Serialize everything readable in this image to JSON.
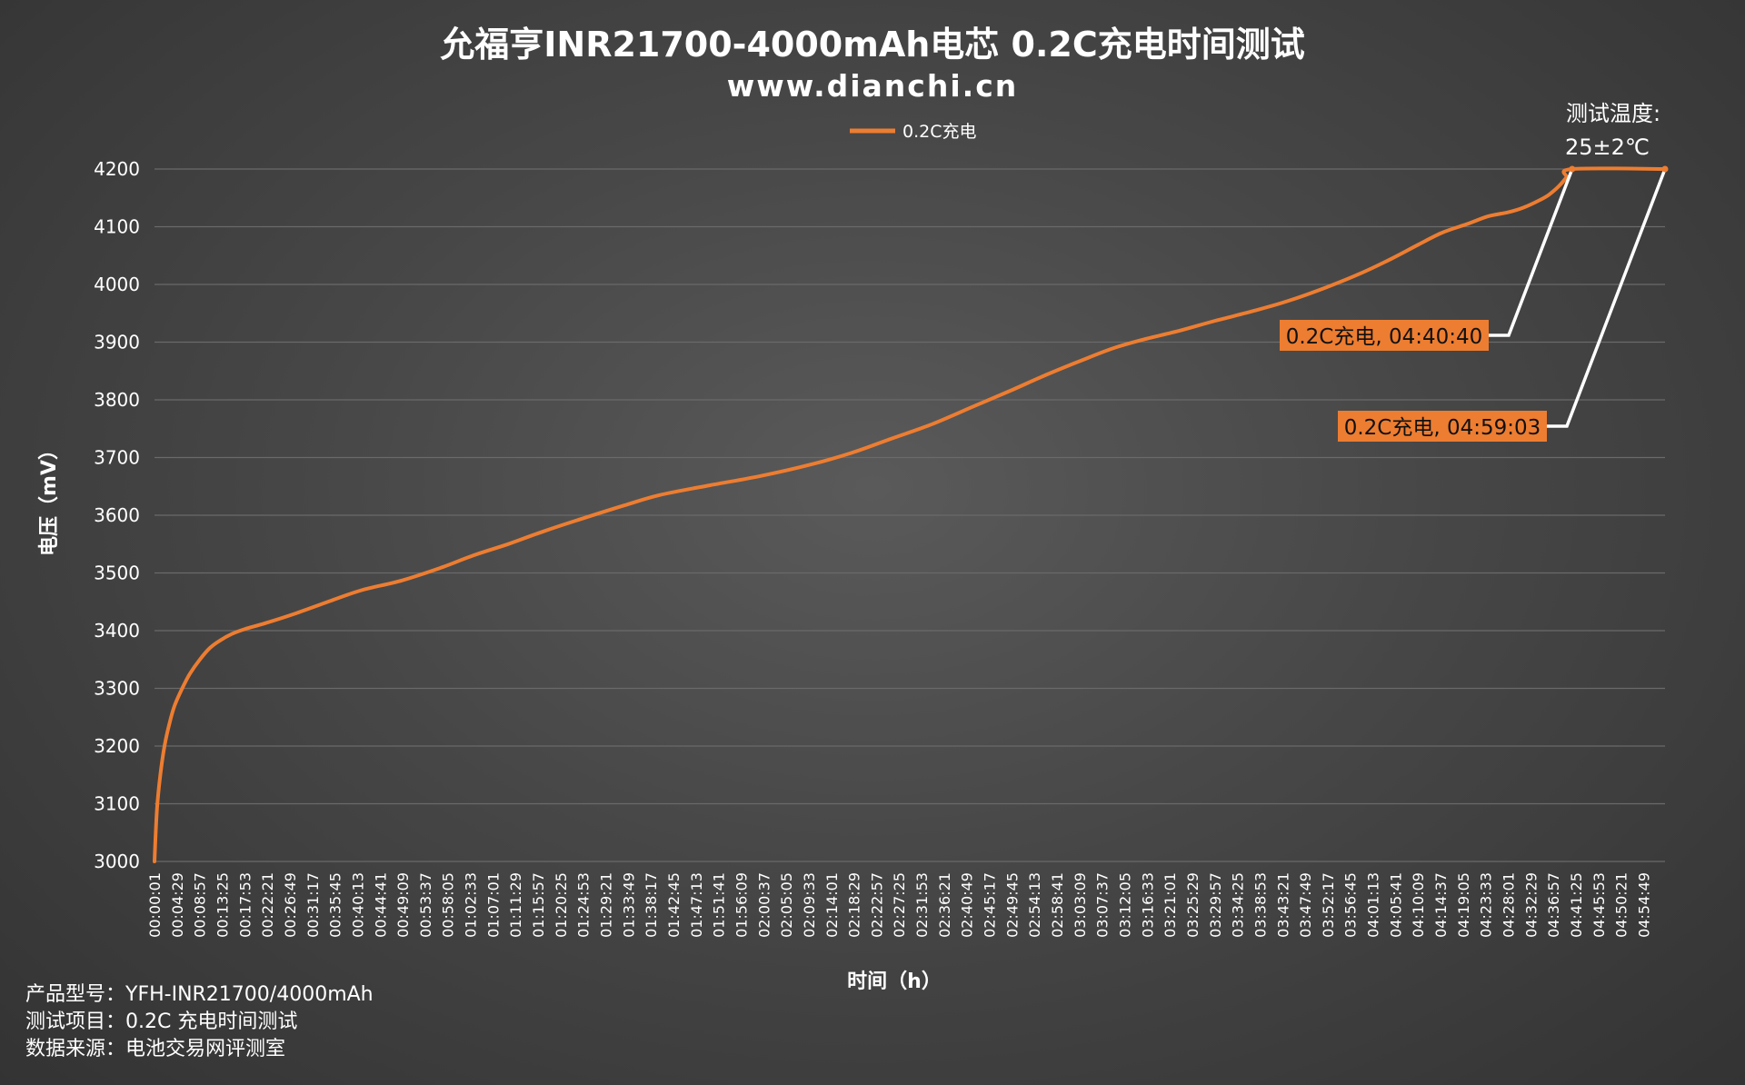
{
  "title": "允福亨INR21700-4000mAh电芯 0.2C充电时间测试",
  "subtitle": "www.dianchi.cn",
  "legend": {
    "label": "0.2C充电",
    "color": "#ed7d31"
  },
  "temperature_note": {
    "line1": "测试温度:",
    "line2": "25±2℃"
  },
  "annotations": [
    {
      "text": "0.2C充电, 04:40:40",
      "time": "04:40:40",
      "voltage": 4200
    },
    {
      "text": "0.2C充电, 04:59:03",
      "time": "04:59:03",
      "voltage": 4200
    }
  ],
  "footer": {
    "model": "产品型号：YFH-INR21700/4000mAh",
    "test_item": "测试项目：0.2C 充电时间测试",
    "source": "数据来源：电池交易网评测室"
  },
  "colors": {
    "line": "#ed7d31",
    "grid": "#6a6a6a",
    "callout_bg": "#ed7d31",
    "leader": "#ffffff"
  },
  "chart_data": {
    "type": "line",
    "title": "允福亨INR21700-4000mAh电芯 0.2C充电时间测试",
    "xlabel": "时间（h）",
    "ylabel": "电压（mV）",
    "ylim": [
      3000,
      4200
    ],
    "yticks": [
      3000,
      3100,
      3200,
      3300,
      3400,
      3500,
      3600,
      3700,
      3800,
      3900,
      4000,
      4100,
      4200
    ],
    "xlim_seconds": [
      1,
      17943
    ],
    "x_tick_labels": [
      "00:00:01",
      "00:04:29",
      "00:08:57",
      "00:13:25",
      "00:17:53",
      "00:22:21",
      "00:26:49",
      "00:31:17",
      "00:35:45",
      "00:40:13",
      "00:44:41",
      "00:49:09",
      "00:53:37",
      "00:58:05",
      "01:02:33",
      "01:07:01",
      "01:11:29",
      "01:15:57",
      "01:20:25",
      "01:24:53",
      "01:29:21",
      "01:33:49",
      "01:38:17",
      "01:42:45",
      "01:47:13",
      "01:51:41",
      "01:56:09",
      "02:00:37",
      "02:05:05",
      "02:09:33",
      "02:14:01",
      "02:18:29",
      "02:22:57",
      "02:27:25",
      "02:31:53",
      "02:36:21",
      "02:40:49",
      "02:45:17",
      "02:49:45",
      "02:54:13",
      "02:58:41",
      "03:03:09",
      "03:07:37",
      "03:12:05",
      "03:16:33",
      "03:21:01",
      "03:25:29",
      "03:29:57",
      "03:34:25",
      "03:38:53",
      "03:43:21",
      "03:47:49",
      "03:52:17",
      "03:56:45",
      "04:01:13",
      "04:05:41",
      "04:10:09",
      "04:14:37",
      "04:19:05",
      "04:23:33",
      "04:28:01",
      "04:32:29",
      "04:36:57",
      "04:41:25",
      "04:45:53",
      "04:50:21",
      "04:54:49"
    ],
    "grid": true,
    "legend_position": "top-center",
    "series": [
      {
        "name": "0.2C充电",
        "points": [
          [
            "00:00:01",
            3000
          ],
          [
            "00:00:30",
            3090
          ],
          [
            "00:01:10",
            3150
          ],
          [
            "00:02:00",
            3200
          ],
          [
            "00:03:00",
            3240
          ],
          [
            "00:04:00",
            3270
          ],
          [
            "00:05:30",
            3300
          ],
          [
            "00:07:00",
            3325
          ],
          [
            "00:09:00",
            3350
          ],
          [
            "00:11:00",
            3370
          ],
          [
            "00:13:00",
            3383
          ],
          [
            "00:15:30",
            3395
          ],
          [
            "00:18:00",
            3403
          ],
          [
            "00:22:00",
            3413
          ],
          [
            "00:28:00",
            3430
          ],
          [
            "00:35:00",
            3452
          ],
          [
            "00:41:00",
            3470
          ],
          [
            "00:49:00",
            3487
          ],
          [
            "00:57:00",
            3510
          ],
          [
            "01:03:00",
            3530
          ],
          [
            "01:10:00",
            3550
          ],
          [
            "01:17:00",
            3572
          ],
          [
            "01:25:00",
            3595
          ],
          [
            "01:33:00",
            3617
          ],
          [
            "01:40:00",
            3635
          ],
          [
            "01:50:00",
            3652
          ],
          [
            "02:00:00",
            3668
          ],
          [
            "02:10:00",
            3688
          ],
          [
            "02:18:00",
            3708
          ],
          [
            "02:26:00",
            3733
          ],
          [
            "02:34:00",
            3758
          ],
          [
            "02:42:00",
            3788
          ],
          [
            "02:50:00",
            3818
          ],
          [
            "02:57:00",
            3845
          ],
          [
            "03:04:00",
            3870
          ],
          [
            "03:10:00",
            3890
          ],
          [
            "03:16:00",
            3905
          ],
          [
            "03:23:00",
            3920
          ],
          [
            "03:30:00",
            3937
          ],
          [
            "03:38:00",
            3955
          ],
          [
            "03:45:00",
            3973
          ],
          [
            "03:52:00",
            3995
          ],
          [
            "03:59:00",
            4020
          ],
          [
            "04:05:00",
            4045
          ],
          [
            "04:10:00",
            4068
          ],
          [
            "04:15:00",
            4090
          ],
          [
            "04:20:00",
            4105
          ],
          [
            "04:24:00",
            4118
          ],
          [
            "04:28:00",
            4125
          ],
          [
            "04:31:00",
            4133
          ],
          [
            "04:34:00",
            4145
          ],
          [
            "04:36:00",
            4155
          ],
          [
            "04:38:00",
            4170
          ],
          [
            "04:39:30",
            4185
          ],
          [
            "04:40:40",
            4200
          ],
          [
            "04:59:03",
            4200
          ]
        ]
      }
    ]
  }
}
